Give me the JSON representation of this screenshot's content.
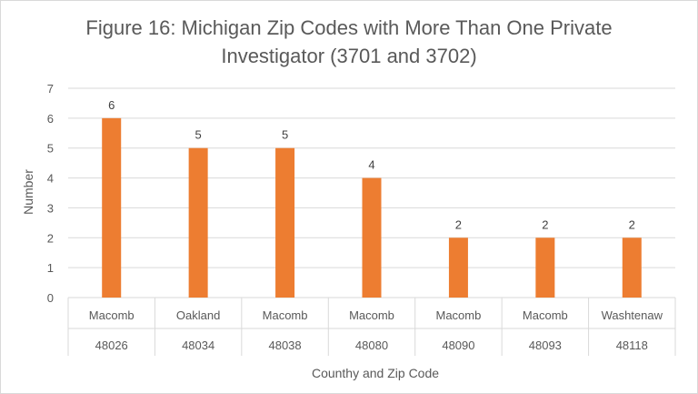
{
  "chart_data": {
    "type": "bar",
    "title": "Figure 16: Michigan Zip Codes with More Than One Private Investigator (3701 and 3702)",
    "title_lines": [
      "Figure 16: Michigan Zip Codes with More Than One Private",
      "Investigator (3701 and 3702)"
    ],
    "xlabel": "Counthy and Zip Code",
    "ylabel": "Number",
    "ylim": [
      0,
      7
    ],
    "yticks": [
      0,
      1,
      2,
      3,
      4,
      5,
      6,
      7
    ],
    "grid": true,
    "categories": [
      {
        "county": "Macomb",
        "zip": "48026"
      },
      {
        "county": "Oakland",
        "zip": "48034"
      },
      {
        "county": "Macomb",
        "zip": "48038"
      },
      {
        "county": "Macomb",
        "zip": "48080"
      },
      {
        "county": "Macomb",
        "zip": "48090"
      },
      {
        "county": "Macomb",
        "zip": "48093"
      },
      {
        "county": "Washtenaw",
        "zip": "48118"
      }
    ],
    "values": [
      6,
      5,
      5,
      4,
      2,
      2,
      2
    ],
    "data_labels": true,
    "colors": {
      "bar": "#ED7D31",
      "grid": "#d9d9d9",
      "text": "#595959"
    }
  }
}
